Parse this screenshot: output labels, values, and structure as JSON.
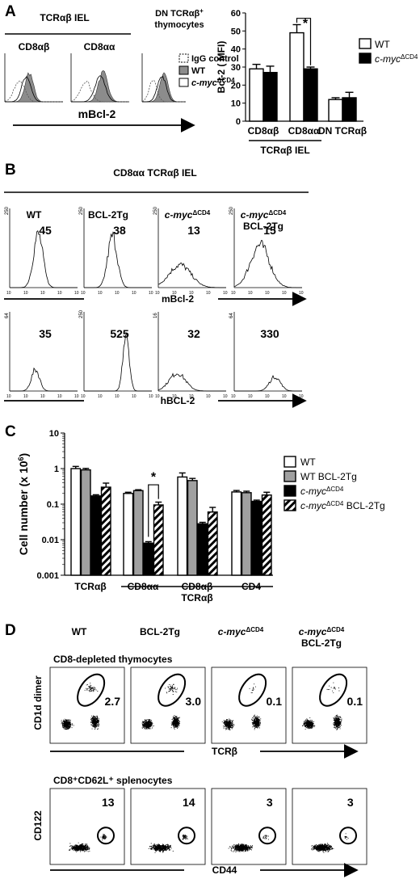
{
  "panels": {
    "A": {
      "letter": "A",
      "group_label": "TCRαβ IEL",
      "dn_label_1": "DN TCRαβ",
      "dn_label_sup": "+",
      "dn_label_2": "thymocytes",
      "hist_labels": [
        "CD8αβ",
        "CD8αα"
      ],
      "legend": [
        {
          "name": "IgG control",
          "style": "dotted"
        },
        {
          "name": "WT",
          "style": "gray"
        },
        {
          "name": "c-myc",
          "sup": "ΔCD4",
          "style": "white"
        }
      ],
      "axis_label": "mBcl-2"
    },
    "B": {
      "letter": "B",
      "header": "CD8αα TCRαβ IEL",
      "columns": [
        {
          "name": "WT",
          "sup": "",
          "line2": ""
        },
        {
          "name": "BCL-2Tg",
          "sup": "",
          "line2": ""
        },
        {
          "name": "c-myc",
          "sup": "ΔCD4",
          "line2": ""
        },
        {
          "name": "c-myc",
          "sup": "ΔCD4",
          "line2": "BCL-2Tg"
        }
      ],
      "row1_values": [
        "45",
        "38",
        "13",
        "15"
      ],
      "row2_values": [
        "35",
        "525",
        "32",
        "330"
      ],
      "row1_ymax": [
        "250",
        "250",
        "250",
        "250"
      ],
      "row2_ymax": [
        "64",
        "250",
        "16",
        "64"
      ],
      "row1_label": "mBcl-2",
      "row2_label": "hBCL-2"
    },
    "C": {
      "letter": "C",
      "group_label": "TCRαβ"
    },
    "D": {
      "letter": "D",
      "columns": [
        {
          "name": "WT",
          "sup": "",
          "line2": ""
        },
        {
          "name": "BCL-2Tg",
          "sup": "",
          "line2": ""
        },
        {
          "name": "c-myc",
          "sup": "ΔCD4",
          "line2": ""
        },
        {
          "name": "c-myc",
          "sup": "ΔCD4",
          "line2": "BCL-2Tg"
        }
      ],
      "row1_title": "CD8-depleted thymocytes",
      "row1_values": [
        "2.7",
        "3.0",
        "0.1",
        "0.1"
      ],
      "row1_ylabel": "CD1d dimer",
      "row1_xlabel": "TCRβ",
      "row2_title": "CD8⁺CD62L⁺ splenocytes",
      "row2_values": [
        "13",
        "14",
        "3",
        "3"
      ],
      "row2_ylabel": "CD122",
      "row2_xlabel": "CD44"
    }
  },
  "chart_data": [
    {
      "type": "bar",
      "panel": "A",
      "ylabel": "Bcl-2 ( MFI)",
      "ylim": [
        0,
        60
      ],
      "yticks": [
        "0",
        "10",
        "20",
        "30",
        "40",
        "50",
        "60"
      ],
      "categories": [
        "CD8αβ",
        "CD8αα",
        "DN TCRαβ"
      ],
      "category_group": "TCRαβ IEL",
      "series": [
        {
          "name": "WT",
          "color": "#ffffff",
          "values": [
            29,
            49,
            12
          ],
          "errors": [
            2.5,
            4.5,
            1
          ]
        },
        {
          "name": "c-myc",
          "sup": "ΔCD4",
          "color": "#000000",
          "values": [
            27,
            29,
            13
          ],
          "errors": [
            3.5,
            1,
            3
          ]
        }
      ],
      "annotation": "*",
      "legend_position": "right"
    },
    {
      "type": "bar",
      "panel": "C",
      "ylabel": "Cell number (x 10",
      "ylabel_sup": "6",
      "ylabel_end": ")",
      "yscale": "log",
      "ylim": [
        0.001,
        10
      ],
      "yticks": [
        "10",
        "1",
        "0.1",
        "0.01",
        "0.001"
      ],
      "categories": [
        "TCRαβ",
        "CD8αα",
        "CD8αβ",
        "CD4"
      ],
      "series": [
        {
          "name": "WT",
          "color": "#ffffff",
          "values": [
            1.0,
            0.2,
            0.58,
            0.22
          ],
          "errors": [
            1.15,
            1.08,
            1.3,
            1.1
          ]
        },
        {
          "name": "WT BCL-2Tg",
          "color": "#a0a0a0",
          "values": [
            0.92,
            0.24,
            0.46,
            0.21
          ],
          "errors": [
            1.1,
            1.06,
            1.15,
            1.1
          ]
        },
        {
          "name": "c-myc",
          "sup": "ΔCD4",
          "color": "#000000",
          "values": [
            0.17,
            0.008,
            0.028,
            0.12
          ],
          "errors": [
            1.08,
            1.1,
            1.1,
            1.08
          ]
        },
        {
          "name": "c-myc",
          "sup": "ΔCD4",
          "suffix": " BCL-2Tg",
          "color": "hatch",
          "values": [
            0.3,
            0.095,
            0.06,
            0.18
          ],
          "errors": [
            1.3,
            1.2,
            1.35,
            1.2
          ]
        }
      ],
      "annotation": "*",
      "legend_position": "right"
    }
  ]
}
